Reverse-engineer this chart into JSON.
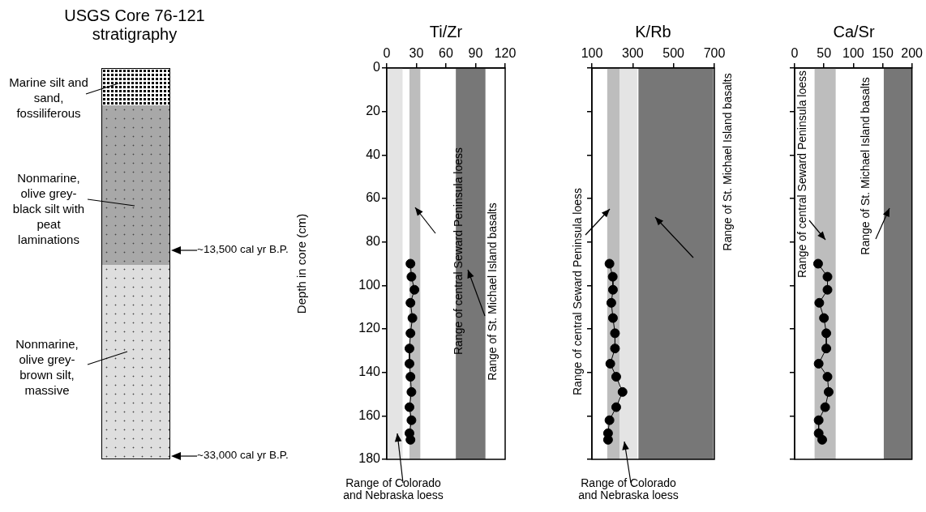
{
  "chart_data": [
    {
      "type": "other",
      "title": "USGS Core 76-121 stratigraphy",
      "annotations": [
        "Marine silt and sand, fossiliferous",
        "Nonmarine, olive grey-black silt with peat laminations",
        "Nonmarine, olive grey-brown silt, massive",
        "~13,500 cal yr B.P.",
        "~33,000 cal yr B.P."
      ]
    },
    {
      "type": "line",
      "title": "Ti/Zr",
      "ylabel": "Depth in core (cm)",
      "xlim": [
        0,
        120
      ],
      "xticks": [
        0,
        30,
        60,
        90,
        120
      ],
      "ylim": [
        180,
        0
      ],
      "yticks": [
        0,
        20,
        40,
        60,
        80,
        100,
        120,
        140,
        160,
        180
      ],
      "grid": false,
      "legend": false,
      "marker": "circle",
      "bands": [
        {
          "axis": "x",
          "from": 0,
          "to": 16,
          "label": "Range of Colorado and Nebraska loess",
          "color": "#e4e4e4"
        },
        {
          "axis": "x",
          "from": 23,
          "to": 34,
          "label": "Range of central Seward Peninsula loess",
          "color": "#bdbdbd"
        },
        {
          "axis": "x",
          "from": 70,
          "to": 100,
          "label": "Range of St. Michael Island basalts",
          "color": "#777777"
        }
      ],
      "series": [
        {
          "color": "#000000",
          "x": [
            24,
            25,
            28,
            24,
            26,
            24,
            23,
            23,
            24,
            25,
            23,
            25,
            23,
            24
          ],
          "values": [
            90,
            96,
            102,
            108,
            115,
            122,
            129,
            136,
            142,
            149,
            156,
            162,
            168,
            171
          ]
        }
      ]
    },
    {
      "type": "line",
      "title": "K/Rb",
      "xlim": [
        100,
        700
      ],
      "xticks": [
        100,
        300,
        500,
        700
      ],
      "ylim": [
        180,
        0
      ],
      "yticks": [
        0,
        20,
        40,
        60,
        80,
        100,
        120,
        140,
        160,
        180
      ],
      "tick_labels": "x",
      "grid": false,
      "legend": false,
      "marker": "circle",
      "bands": [
        {
          "axis": "x",
          "from": 175,
          "to": 235,
          "label": "Range of central Seward Peninsula loess",
          "color": "#bdbdbd"
        },
        {
          "axis": "x",
          "from": 235,
          "to": 322,
          "label": "Range of Colorado and Nebraska loess",
          "color": "#e4e4e4"
        },
        {
          "axis": "x",
          "from": 328,
          "to": 695,
          "label": "Range of St. Michael Island basalts",
          "color": "#777777"
        }
      ],
      "series": [
        {
          "color": "#000000",
          "x": [
            186,
            202,
            203,
            195,
            203,
            213,
            213,
            190,
            219,
            250,
            219,
            186,
            179,
            179
          ],
          "values": [
            90,
            96,
            102,
            108,
            115,
            122,
            129,
            136,
            142,
            149,
            156,
            162,
            168,
            171
          ]
        }
      ]
    },
    {
      "type": "line",
      "title": "Ca/Sr",
      "xlim": [
        0,
        200
      ],
      "xticks": [
        0,
        50,
        100,
        150,
        200
      ],
      "ylim": [
        180,
        0
      ],
      "yticks": [
        0,
        20,
        40,
        60,
        80,
        100,
        120,
        140,
        160,
        180
      ],
      "tick_labels": "x",
      "grid": false,
      "legend": false,
      "marker": "circle",
      "bands": [
        {
          "axis": "x",
          "from": 34,
          "to": 70,
          "label": "Range of central Seward Peninsula loess",
          "color": "#bdbdbd"
        },
        {
          "axis": "x",
          "from": 152,
          "to": 200,
          "label": "Range of St. Michael Island basalts",
          "color": "#777777"
        }
      ],
      "series": [
        {
          "color": "#000000",
          "x": [
            40,
            56,
            56,
            42,
            50,
            54,
            54,
            41,
            56,
            58,
            52,
            41,
            41,
            47
          ],
          "values": [
            90,
            96,
            102,
            108,
            115,
            122,
            129,
            136,
            142,
            149,
            156,
            162,
            168,
            171
          ]
        }
      ]
    }
  ]
}
